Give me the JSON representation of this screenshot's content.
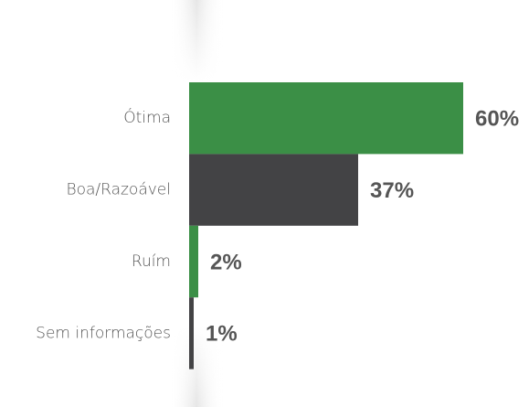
{
  "chart_data": {
    "type": "bar",
    "orientation": "horizontal",
    "categories": [
      "Ótima",
      "Boa/Razoável",
      "Ruím",
      "Sem informações"
    ],
    "values": [
      60,
      37,
      2,
      1
    ],
    "value_labels": [
      "60%",
      "37%",
      "2%",
      "1%"
    ],
    "colors": [
      "#3b8f46",
      "#434345",
      "#3b8f46",
      "#434345"
    ]
  }
}
